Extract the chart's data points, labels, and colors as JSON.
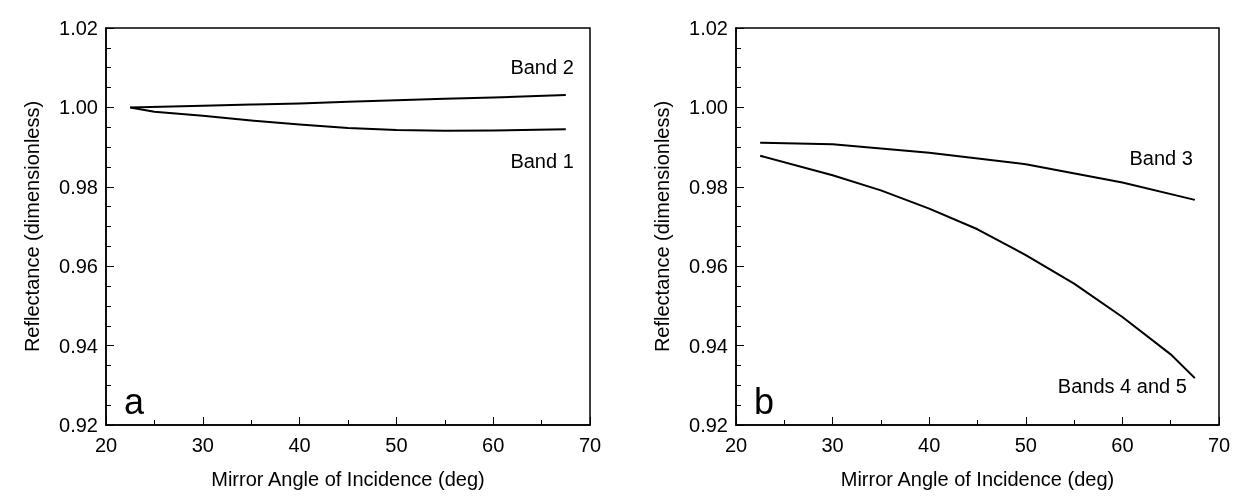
{
  "chart_data": [
    {
      "type": "line",
      "xlabel": "Mirror Angle of Incidence (deg)",
      "ylabel": "Reflectance (dimensionless)",
      "annotations": [
        "a"
      ],
      "xlim": [
        20,
        70
      ],
      "xticks": [
        20,
        30,
        40,
        50,
        60,
        70
      ],
      "ylim": [
        0.92,
        1.02
      ],
      "yticks": [
        0.92,
        0.94,
        0.96,
        0.98,
        {
          "value": 1,
          "label": "1.00"
        },
        1.02
      ],
      "grid": false,
      "legend": false,
      "marker": "none",
      "line_style": "solid",
      "series": [
        {
          "name": "Band 2",
          "color": "#000000",
          "x": [
            22.5,
            30,
            35,
            40,
            45,
            50,
            55,
            60,
            67.5
          ],
          "values": [
            1.0,
            1.0004,
            1.0007,
            1.001,
            1.0014,
            1.0018,
            1.0022,
            1.0025,
            1.0031
          ]
        },
        {
          "name": "Band 1",
          "color": "#000000",
          "x": [
            22.5,
            25,
            30,
            35,
            40,
            45,
            50,
            55,
            60,
            67.5
          ],
          "values": [
            1.0,
            0.9989,
            0.9979,
            0.9967,
            0.9957,
            0.9948,
            0.9943,
            0.9941,
            0.9942,
            0.9945
          ]
        }
      ]
    },
    {
      "type": "line",
      "xlabel": "Mirror Angle of Incidence (deg)",
      "ylabel": "Reflectance (dimensionless)",
      "annotations": [
        "b"
      ],
      "xlim": [
        20,
        70
      ],
      "xticks": [
        20,
        30,
        40,
        50,
        60,
        70
      ],
      "ylim": [
        0.92,
        1.02
      ],
      "yticks": [
        0.92,
        0.94,
        0.96,
        0.98,
        {
          "value": 1,
          "label": "1.00"
        },
        1.02
      ],
      "grid": false,
      "legend": false,
      "marker": "none",
      "line_style": "solid",
      "series": [
        {
          "name": "Band 3",
          "color": "#000000",
          "x": [
            22.5,
            30,
            40,
            50,
            60,
            67.5
          ],
          "values": [
            0.9911,
            0.9907,
            0.9886,
            0.9857,
            0.9811,
            0.9767
          ]
        },
        {
          "name": "Bands 4 and 5",
          "color": "#000000",
          "x": [
            22.5,
            30,
            35,
            40,
            45,
            50,
            55,
            60,
            65,
            67.5
          ],
          "values": [
            0.9878,
            0.9829,
            0.9791,
            0.9745,
            0.9693,
            0.9628,
            0.9556,
            0.9472,
            0.9378,
            0.9318
          ]
        }
      ]
    }
  ]
}
